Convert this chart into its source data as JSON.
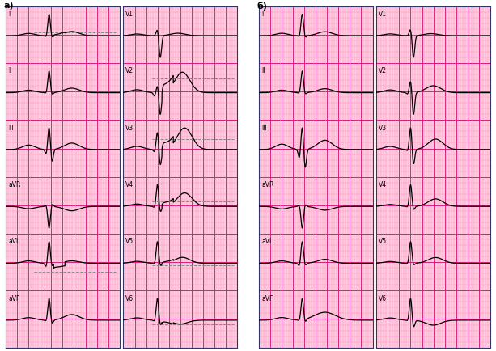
{
  "bg_color": "#FFCCE0",
  "grid_minor_color": "#FF80B0",
  "grid_major_color": "#DD2080",
  "line_color": "#000000",
  "dashed_color": "#888888",
  "panel_a_label": "а)",
  "panel_b_label": "б)",
  "leads_left": [
    "I",
    "II",
    "III",
    "aVR",
    "aVL",
    "aVF"
  ],
  "leads_right": [
    "V1",
    "V2",
    "V3",
    "V4",
    "V5",
    "V6"
  ],
  "fig_width": 6.13,
  "fig_height": 4.35,
  "dpi": 100,
  "outer_bg": "#FFFFFF",
  "panel_border_color": "#333366"
}
